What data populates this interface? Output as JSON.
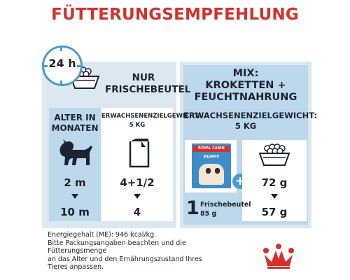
{
  "title": "FÜTTERUNGSEMPFEHLUNG",
  "clock": {
    "label": "24 h",
    "icon": "clock-icon"
  },
  "left_panel": {
    "header_lines": [
      "NUR",
      "FRISCHEBEUTEL"
    ],
    "age_header_lines": [
      "ALTER IN",
      "MONATEN"
    ],
    "adult_header_lines": [
      "ERWACHSENENZIELGEWICHT:",
      "5 KG"
    ],
    "rows": [
      {
        "age": "2 m",
        "amount": "4+1/2"
      },
      {
        "age": "10 m",
        "amount": "4"
      }
    ]
  },
  "right_panel": {
    "header_lines": [
      "MIX:",
      "KROKETTEN +",
      "FEUCHTNAHRUNG"
    ],
    "adult_header_lines": [
      "ERWACHSENENZIELGEWICHT:",
      "5 KG"
    ],
    "pouch_count": "1",
    "pouch_label": "Frischebeutel",
    "pouch_weight": "85 g",
    "pouch_brand": "ROYAL CANIN",
    "pouch_product": "PUPPY",
    "kibble_rows": [
      "72 g",
      "57 g"
    ]
  },
  "footnote_lines": [
    "Energiegehalt (ME): 946 kcal/kg.",
    "Bitte Packungsangaben beachten und die",
    "Fütterungsmenge",
    "an das Alter und den Ernährungszustand Ihres",
    "Tieres anpassen."
  ],
  "colors": {
    "red": "#d2312c",
    "blue": "#4a9bd1",
    "light_blue": "#bdd8ea",
    "pale_blue": "#dbe8f1",
    "navy": "#1b2430"
  }
}
